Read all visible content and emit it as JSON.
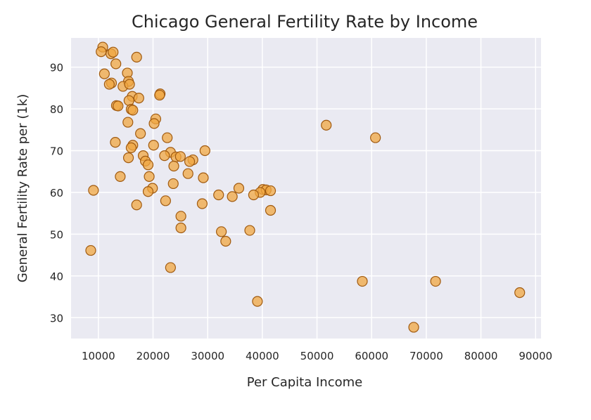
{
  "chart_data": {
    "type": "scatter",
    "title": "Chicago General Fertility Rate by Income",
    "xlabel": "Per Capita Income",
    "ylabel": "General Fertility Rate per (1k)",
    "xlim": [
      5000,
      91000
    ],
    "ylim": [
      25,
      97
    ],
    "xticks": [
      10000,
      20000,
      30000,
      40000,
      50000,
      60000,
      70000,
      80000,
      90000
    ],
    "yticks": [
      30,
      40,
      50,
      60,
      70,
      80,
      90
    ],
    "grid": true,
    "colors": {
      "background": "#eaeaf2",
      "grid": "#ffffff",
      "point_fill": "#f0a742",
      "point_edge": "#a05a10"
    },
    "points": [
      {
        "x": 10800,
        "y": 94.8
      },
      {
        "x": 10500,
        "y": 93.7
      },
      {
        "x": 12300,
        "y": 93.2
      },
      {
        "x": 12700,
        "y": 93.6
      },
      {
        "x": 17000,
        "y": 92.4
      },
      {
        "x": 13200,
        "y": 90.8
      },
      {
        "x": 11100,
        "y": 88.4
      },
      {
        "x": 15300,
        "y": 88.6
      },
      {
        "x": 15500,
        "y": 86.6
      },
      {
        "x": 12400,
        "y": 86.2
      },
      {
        "x": 12000,
        "y": 85.9
      },
      {
        "x": 14500,
        "y": 85.4
      },
      {
        "x": 15700,
        "y": 85.9
      },
      {
        "x": 21300,
        "y": 83.6
      },
      {
        "x": 21200,
        "y": 83.3
      },
      {
        "x": 16200,
        "y": 83.0
      },
      {
        "x": 15600,
        "y": 82.0
      },
      {
        "x": 17400,
        "y": 82.6
      },
      {
        "x": 13300,
        "y": 80.8
      },
      {
        "x": 13600,
        "y": 80.7
      },
      {
        "x": 16000,
        "y": 79.9
      },
      {
        "x": 16300,
        "y": 79.7
      },
      {
        "x": 20500,
        "y": 77.6
      },
      {
        "x": 20200,
        "y": 76.5
      },
      {
        "x": 15400,
        "y": 76.8
      },
      {
        "x": 17700,
        "y": 74.1
      },
      {
        "x": 22600,
        "y": 73.1
      },
      {
        "x": 13100,
        "y": 72.0
      },
      {
        "x": 16300,
        "y": 71.3
      },
      {
        "x": 16000,
        "y": 70.7
      },
      {
        "x": 20100,
        "y": 71.3
      },
      {
        "x": 23200,
        "y": 69.6
      },
      {
        "x": 18200,
        "y": 68.8
      },
      {
        "x": 15500,
        "y": 68.3
      },
      {
        "x": 22100,
        "y": 68.8
      },
      {
        "x": 24200,
        "y": 68.5
      },
      {
        "x": 25000,
        "y": 68.6
      },
      {
        "x": 29500,
        "y": 70.0
      },
      {
        "x": 27300,
        "y": 67.8
      },
      {
        "x": 26700,
        "y": 67.4
      },
      {
        "x": 18600,
        "y": 67.5
      },
      {
        "x": 19100,
        "y": 66.6
      },
      {
        "x": 23800,
        "y": 66.3
      },
      {
        "x": 26400,
        "y": 64.5
      },
      {
        "x": 14000,
        "y": 63.8
      },
      {
        "x": 19300,
        "y": 63.8
      },
      {
        "x": 29200,
        "y": 63.5
      },
      {
        "x": 23700,
        "y": 62.1
      },
      {
        "x": 19900,
        "y": 61.0
      },
      {
        "x": 19100,
        "y": 60.2
      },
      {
        "x": 9100,
        "y": 60.5
      },
      {
        "x": 35700,
        "y": 61.0
      },
      {
        "x": 40100,
        "y": 60.7
      },
      {
        "x": 40700,
        "y": 60.6
      },
      {
        "x": 39600,
        "y": 60.0
      },
      {
        "x": 41500,
        "y": 60.4
      },
      {
        "x": 32000,
        "y": 59.4
      },
      {
        "x": 34500,
        "y": 59.0
      },
      {
        "x": 38400,
        "y": 59.4
      },
      {
        "x": 22300,
        "y": 58.0
      },
      {
        "x": 17000,
        "y": 57.0
      },
      {
        "x": 29000,
        "y": 57.3
      },
      {
        "x": 41500,
        "y": 55.7
      },
      {
        "x": 25100,
        "y": 54.3
      },
      {
        "x": 25100,
        "y": 51.5
      },
      {
        "x": 32500,
        "y": 50.6
      },
      {
        "x": 37700,
        "y": 50.9
      },
      {
        "x": 33300,
        "y": 48.3
      },
      {
        "x": 8600,
        "y": 46.1
      },
      {
        "x": 23200,
        "y": 42.0
      },
      {
        "x": 39100,
        "y": 33.9
      },
      {
        "x": 51700,
        "y": 76.1
      },
      {
        "x": 60700,
        "y": 73.1
      },
      {
        "x": 58300,
        "y": 38.7
      },
      {
        "x": 71700,
        "y": 38.7
      },
      {
        "x": 67700,
        "y": 27.7
      },
      {
        "x": 87100,
        "y": 36.0
      }
    ]
  }
}
